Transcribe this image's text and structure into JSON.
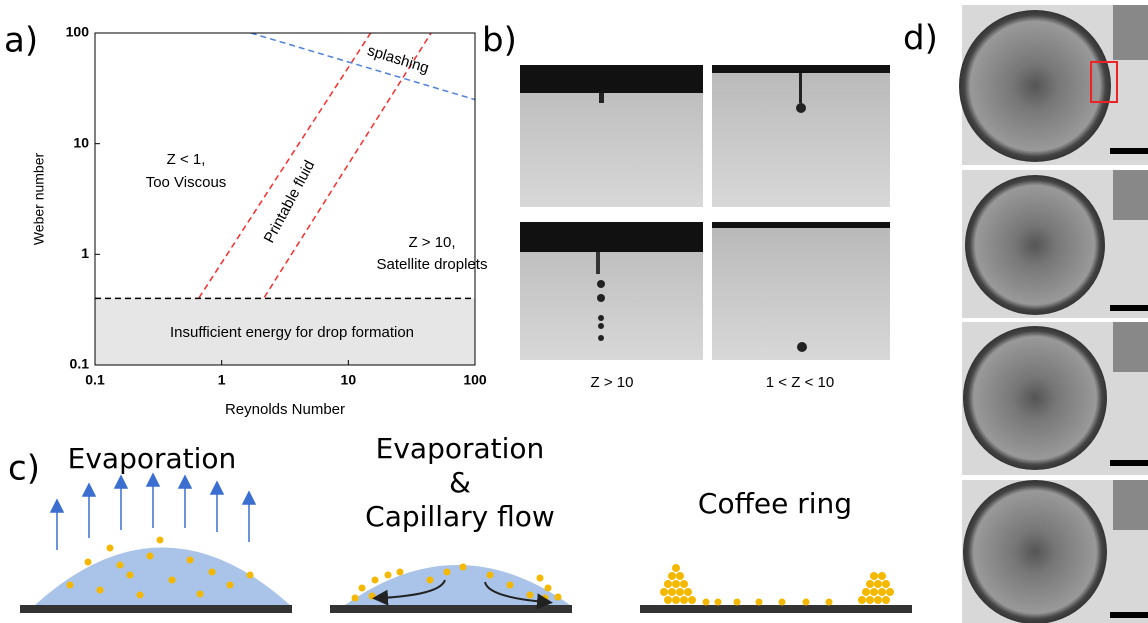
{
  "chart_data": {
    "type": "line",
    "panel_label": "a)",
    "xlabel": "Reynolds Number",
    "ylabel": "Weber number",
    "log_x": true,
    "log_y": true,
    "xlim": [
      0.1,
      100
    ],
    "ylim": [
      0.1,
      100
    ],
    "xticks": [
      0.1,
      1,
      10,
      100
    ],
    "yticks": [
      0.1,
      1,
      10,
      100
    ],
    "series": [
      {
        "color": "#ff2a2a",
        "dash": true,
        "x": [
          0.3,
          15
        ],
        "values": [
          0.1,
          100
        ]
      },
      {
        "color": "#ff2a2a",
        "dash": true,
        "x": [
          1,
          45
        ],
        "values": [
          0.1,
          100
        ]
      },
      {
        "color": "#4f81d9",
        "dash": true,
        "x": [
          1.7,
          100
        ],
        "values": [
          100,
          25
        ]
      },
      {
        "color": "#000000",
        "dash": true,
        "shade_below": "#e6e6e6",
        "x": [
          0.1,
          100
        ],
        "values": [
          0.4,
          0.4
        ]
      }
    ],
    "annotations": [
      {
        "text": "Z < 1,",
        "color": "#e02020"
      },
      {
        "text": "Too Viscous",
        "color": "#1f6fc0"
      },
      {
        "text": "Printable fluid",
        "color": "#e02020"
      },
      {
        "text": "Z > 10,",
        "color": "#e02020"
      },
      {
        "text": "Satellite droplets",
        "color": "#1f6fc0"
      },
      {
        "text": "splashing",
        "color": "#1f6fc0"
      },
      {
        "text": "Insufficient energy for drop formation",
        "color": "#000000"
      }
    ]
  },
  "panel_b": {
    "label": "b)",
    "captions": [
      "Z > 10",
      "1 < Z < 10"
    ]
  },
  "panel_c": {
    "label": "c)",
    "left": "Evaporation",
    "middle": [
      "Evaporation",
      "&",
      "Capillary flow"
    ],
    "right": "Coffee ring"
  },
  "panel_d": {
    "label": "d)"
  }
}
